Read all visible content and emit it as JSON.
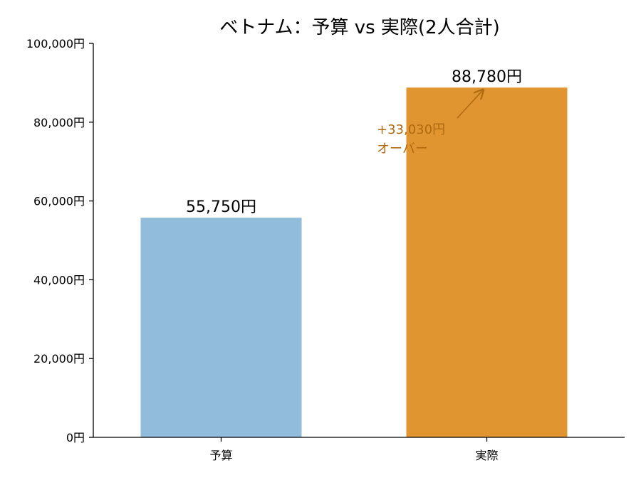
{
  "chart_data": {
    "type": "bar",
    "title": "ベトナム：予算 vs 実際(2人合計)",
    "xlabel": "",
    "ylabel": "",
    "categories": [
      "予算",
      "実際"
    ],
    "values": [
      55750,
      88780
    ],
    "value_labels": [
      "55,750円",
      "88,780円"
    ],
    "colors": [
      "#91bcdb",
      "#e09530"
    ],
    "ylim": [
      0,
      100000
    ],
    "yticks": [
      0,
      20000,
      40000,
      60000,
      80000,
      100000
    ],
    "ytick_labels": [
      "0円",
      "20,000円",
      "40,000円",
      "60,000円",
      "80,000円",
      "100,000円"
    ],
    "grid": false,
    "annotation": {
      "lines": [
        "+33,030円",
        "オーバー"
      ],
      "color": "#b06a10",
      "target_category": "実際"
    }
  }
}
